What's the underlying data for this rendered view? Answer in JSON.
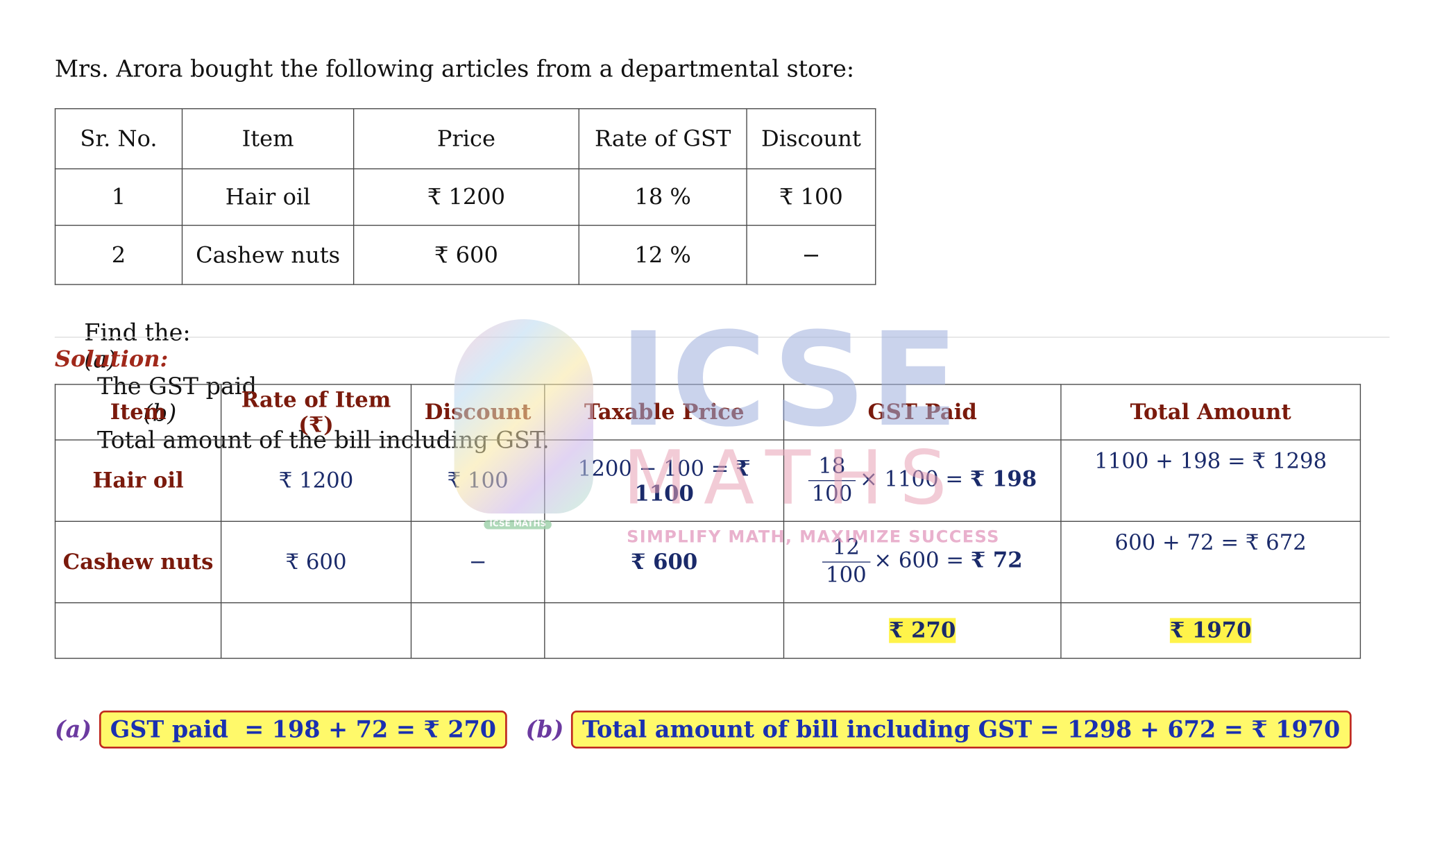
{
  "question": "Mrs. Arora bought the following articles from a departmental store:",
  "table": {
    "headers": [
      "Sr. No.",
      "Item",
      "Price",
      "Rate of GST",
      "Discount"
    ],
    "rows": [
      [
        "1",
        "Hair oil",
        "₹ 1200",
        "18 %",
        "₹ 100"
      ],
      [
        "2",
        "Cashew nuts",
        "₹ 600",
        "12 %",
        "−"
      ]
    ]
  },
  "find": {
    "prefix": "Find the:",
    "a_label": "(a)",
    "a_text": "The GST paid",
    "b_label": "(b)",
    "b_text": "Total amount of the bill including GST."
  },
  "solution_label": "Solution:",
  "solution_table": {
    "headers": [
      "Item",
      "Rate of Item (₹)",
      "Discount",
      "Taxable Price",
      "GST Paid",
      "Total Amount"
    ],
    "rows": [
      {
        "item": "Hair oil",
        "rate": "₹ 1200",
        "discount": "₹ 100",
        "taxable": {
          "expr": "1200 − 100 = ",
          "result": "₹ 1100"
        },
        "gst": {
          "numerator": "18",
          "denominator": "100",
          "expr": "× 1100 = ",
          "result": "₹ 198"
        },
        "total": "1100 + 198 = ₹ 1298"
      },
      {
        "item": "Cashew nuts",
        "rate": "₹ 600",
        "discount": "−",
        "taxable": {
          "result": "₹ 600"
        },
        "gst": {
          "numerator": "12",
          "denominator": "100",
          "expr": "× 600 = ",
          "result": "₹ 72"
        },
        "total": "600 + 72 = ₹ 672"
      }
    ],
    "totals": {
      "gst": "₹ 270",
      "total": "₹ 1970"
    }
  },
  "answers": [
    {
      "label": "(a)",
      "text": "GST paid  = 198 + 72 = ₹ 270"
    },
    {
      "label": "(b)",
      "text": "Total amount of bill including GST = 1298 + 672 = ₹ 1970"
    }
  ],
  "watermark": {
    "title": "ICSE",
    "subtitle": "MATHS",
    "tagline": "SIMPLIFY MATH, MAXIMIZE SUCCESS",
    "badge": "ICSE MATHS"
  }
}
